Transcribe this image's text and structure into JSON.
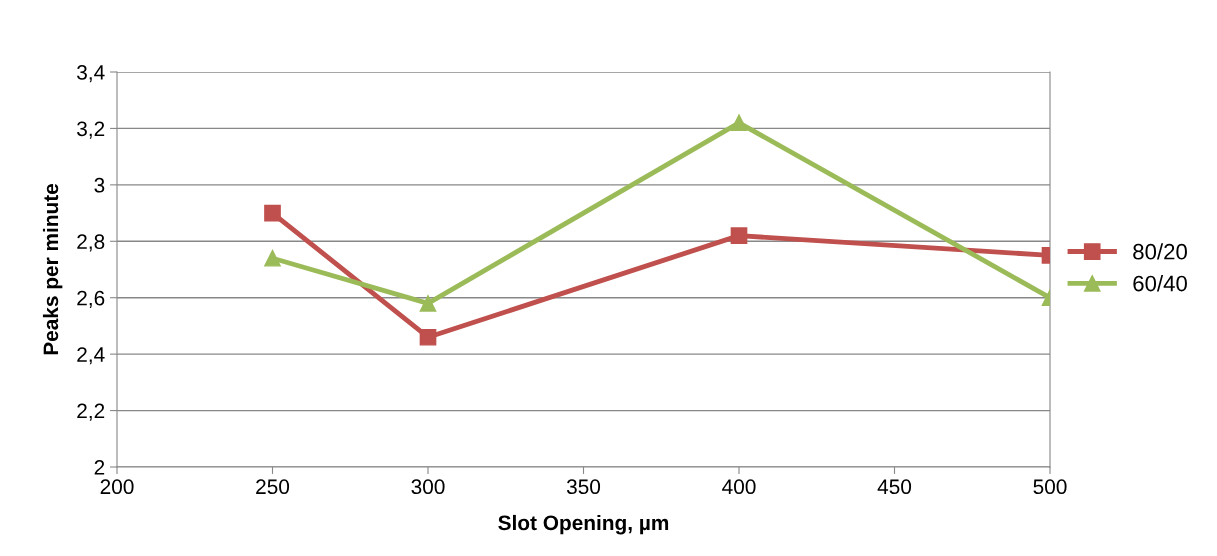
{
  "chart_data": {
    "type": "line",
    "xlabel": "Slot Opening, µm",
    "ylabel": "Peaks per minute",
    "x": [
      250,
      300,
      400,
      500
    ],
    "series": [
      {
        "name": "80/20",
        "color": "#c0504d",
        "marker": "square",
        "values": [
          2.9,
          2.46,
          2.82,
          2.75
        ]
      },
      {
        "name": "60/40",
        "color": "#9bbb59",
        "marker": "triangle",
        "values": [
          2.74,
          2.58,
          3.22,
          2.6
        ]
      }
    ],
    "xlim": [
      200,
      500
    ],
    "xticks": [
      200,
      250,
      300,
      350,
      400,
      450,
      500
    ],
    "ylim": [
      2,
      3.4
    ],
    "yticks": [
      {
        "value": 2,
        "label": "2"
      },
      {
        "value": 2.2,
        "label": "2,2"
      },
      {
        "value": 2.4,
        "label": "2,4"
      },
      {
        "value": 2.6,
        "label": "2,6"
      },
      {
        "value": 2.8,
        "label": "2,8"
      },
      {
        "value": 3,
        "label": "3"
      },
      {
        "value": 3.2,
        "label": "3,2"
      },
      {
        "value": 3.4,
        "label": "3,4"
      }
    ],
    "grid": "y",
    "legend": "right",
    "line_style": "solid"
  }
}
